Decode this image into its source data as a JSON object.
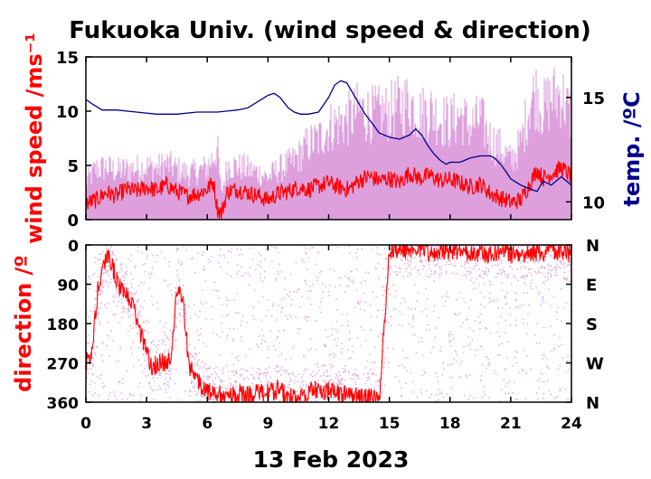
{
  "colors": {
    "speed": "#ff0000",
    "gust": "#dda0dd",
    "temp": "#00008b",
    "axis": "#000000"
  },
  "chart_data": [
    {
      "panel": "top",
      "type": "line",
      "title": "Fukuoka Univ. (wind speed & direction)",
      "xlabel": "13 Feb 2023",
      "ylabel": "wind speed /ms⁻¹",
      "y2label": "temp. /ºC",
      "xlim": [
        0,
        24
      ],
      "ylim": [
        0,
        15
      ],
      "y2lim": [
        9.15,
        16.94
      ],
      "xticks": [
        "0",
        "3",
        "6",
        "9",
        "12",
        "15",
        "18",
        "21",
        "24"
      ],
      "yticks": [
        "0",
        "5",
        "10",
        "15"
      ],
      "y2ticks": [
        "10",
        "15"
      ],
      "series": [
        {
          "values_kind": "wind speed (approx. from plot)",
          "x": [
            0,
            0.5,
            1,
            1.5,
            2,
            2.5,
            3,
            3.5,
            4,
            4.5,
            5,
            5.5,
            6,
            6.3,
            6.5,
            6.7,
            7,
            7.5,
            8,
            8.5,
            9,
            9.5,
            10,
            10.5,
            11,
            11.5,
            12,
            12.5,
            13,
            13.5,
            14,
            14.5,
            15,
            15.5,
            16,
            16.5,
            17,
            17.5,
            18,
            18.5,
            19,
            19.5,
            20,
            20.5,
            21,
            21.5,
            22,
            22.3,
            22.6,
            23,
            23.5,
            24
          ],
          "y": [
            1.5,
            1.8,
            2.5,
            2.2,
            2.8,
            2.6,
            3.0,
            2.7,
            3.2,
            2.6,
            2.2,
            2.4,
            2.8,
            3.5,
            1.0,
            0.6,
            2.6,
            2.8,
            2.5,
            2.2,
            1.8,
            2.4,
            2.6,
            3.0,
            2.8,
            3.1,
            3.4,
            3.0,
            2.8,
            3.6,
            4.0,
            3.6,
            3.8,
            3.4,
            4.3,
            3.8,
            4.1,
            3.6,
            3.7,
            3.4,
            3.0,
            3.3,
            2.4,
            2.0,
            1.6,
            1.8,
            3.5,
            4.6,
            3.8,
            4.2,
            4.8,
            4.0
          ]
        },
        {
          "values_kind": "gust envelope (approx. from plot)",
          "x": [
            0,
            0.5,
            1,
            1.5,
            2,
            2.5,
            3,
            3.5,
            4,
            4.5,
            5,
            5.5,
            6,
            6.3,
            6.5,
            6.7,
            7,
            7.5,
            8,
            8.5,
            9,
            9.5,
            10,
            10.5,
            11,
            11.5,
            12,
            12.5,
            13,
            13.5,
            14,
            14.5,
            15,
            15.5,
            16,
            16.5,
            17,
            17.5,
            18,
            18.5,
            19,
            19.5,
            20,
            20.5,
            21,
            21.5,
            22,
            22.3,
            22.6,
            23,
            23.5,
            24
          ],
          "y": [
            4.5,
            6.0,
            6.2,
            5.8,
            6.0,
            6.1,
            6.3,
            6.1,
            6.6,
            6.0,
            5.5,
            5.7,
            6.2,
            7.5,
            8.5,
            3.0,
            6.5,
            6.3,
            6.0,
            5.6,
            5.0,
            6.0,
            6.5,
            7.5,
            9.0,
            9.5,
            11.0,
            11.5,
            12.0,
            13.0,
            12.5,
            12.5,
            12.8,
            13.5,
            14.0,
            12.5,
            13.0,
            12.0,
            11.5,
            12.5,
            11.0,
            12.0,
            9.5,
            8.5,
            7.0,
            9.0,
            14.5,
            15.0,
            13.0,
            14.5,
            15.0,
            12.0
          ]
        },
        {
          "values_kind": "temperature (approx. from plot)",
          "x": [
            0,
            0.3,
            0.8,
            1.5,
            2.5,
            3.5,
            4.5,
            5.5,
            6.5,
            7.5,
            8,
            8.5,
            9,
            9.3,
            9.6,
            10,
            10.3,
            10.6,
            11,
            11.5,
            12,
            12.3,
            12.6,
            12.9,
            13.2,
            13.5,
            13.8,
            14.2,
            14.5,
            15,
            15.5,
            16,
            16.3,
            16.6,
            16.9,
            17.2,
            17.5,
            17.8,
            18,
            18.5,
            19,
            19.5,
            20,
            20.2,
            20.5,
            20.8,
            21,
            21.5,
            22,
            22.3,
            22.6,
            23,
            23.5,
            24
          ],
          "y": [
            14.9,
            14.7,
            14.4,
            14.4,
            14.3,
            14.2,
            14.2,
            14.3,
            14.3,
            14.4,
            14.5,
            14.8,
            15.1,
            15.2,
            15.0,
            14.5,
            14.3,
            14.2,
            14.2,
            14.3,
            15.0,
            15.6,
            15.8,
            15.7,
            15.2,
            14.7,
            14.2,
            13.7,
            13.3,
            13.1,
            13.0,
            13.2,
            13.5,
            13.2,
            12.7,
            12.3,
            12.0,
            11.8,
            11.9,
            11.9,
            12.1,
            12.2,
            12.2,
            12.1,
            11.8,
            11.4,
            11.1,
            10.8,
            10.6,
            10.5,
            11.0,
            10.8,
            11.2,
            10.8
          ]
        }
      ]
    },
    {
      "panel": "bottom",
      "type": "scatter",
      "ylabel": "direction /º",
      "xlim": [
        0,
        24
      ],
      "ylim": [
        0,
        360
      ],
      "xticks": [
        "0",
        "3",
        "6",
        "9",
        "12",
        "15",
        "18",
        "21",
        "24"
      ],
      "yticks": [
        "0",
        "90",
        "180",
        "270",
        "360"
      ],
      "y2ticks": [
        "N",
        "E",
        "S",
        "W",
        "N"
      ],
      "series": [
        {
          "values_kind": "wind direction, degrees (approx. from plot)",
          "x": [
            0,
            0.3,
            0.6,
            0.9,
            1.2,
            1.5,
            1.8,
            2.1,
            2.4,
            2.7,
            3.0,
            3.3,
            3.6,
            3.9,
            4.2,
            4.5,
            4.8,
            5.1,
            5.4,
            5.7,
            6.0,
            6.3,
            6.6,
            6.9,
            7.2,
            7.5,
            8,
            8.5,
            9,
            9.5,
            10,
            10.5,
            11,
            11.5,
            12,
            12.5,
            13,
            13.5,
            14,
            14.5,
            15,
            15.5,
            16,
            16.5,
            17,
            17.5,
            18,
            18.5,
            19,
            19.5,
            20,
            20.5,
            21,
            21.5,
            22,
            22.5,
            23,
            23.5,
            24
          ],
          "y": [
            270,
            250,
            100,
            40,
            30,
            80,
            110,
            120,
            150,
            200,
            250,
            280,
            270,
            270,
            260,
            100,
            120,
            280,
            300,
            320,
            340,
            330,
            340,
            350,
            345,
            340,
            345,
            340,
            340,
            330,
            350,
            345,
            335,
            330,
            335,
            340,
            345,
            350,
            350,
            355,
            10,
            15,
            10,
            5,
            20,
            10,
            15,
            10,
            20,
            15,
            25,
            10,
            20,
            30,
            15,
            20,
            10,
            15,
            25
          ]
        },
        {
          "values_kind": "gust-sample direction scatter (approx. from plot)",
          "x": [
            0.5,
            1.0,
            1.5,
            2.5,
            3.0,
            4.0,
            5.0,
            6.5,
            7.5,
            8.0,
            8.5,
            9.0,
            9.5,
            10.0,
            10.5,
            11.0,
            11.5,
            12.0,
            12.5,
            13.0,
            13.5,
            14.0,
            14.5,
            15.0,
            15.5,
            16.0,
            16.5,
            17.0,
            17.5,
            18.0,
            18.5,
            19.0,
            19.5,
            20.0,
            20.5,
            21.0,
            21.5,
            22.0,
            22.5,
            23.0,
            23.5
          ],
          "y": [
            300,
            60,
            200,
            90,
            330,
            30,
            200,
            150,
            220,
            120,
            60,
            260,
            200,
            100,
            300,
            180,
            50,
            250,
            140,
            320,
            90,
            200,
            60,
            160,
            280,
            30,
            120,
            220,
            80,
            300,
            170,
            40,
            240,
            110,
            60,
            200,
            280,
            90,
            150,
            320,
            60
          ]
        }
      ]
    }
  ]
}
